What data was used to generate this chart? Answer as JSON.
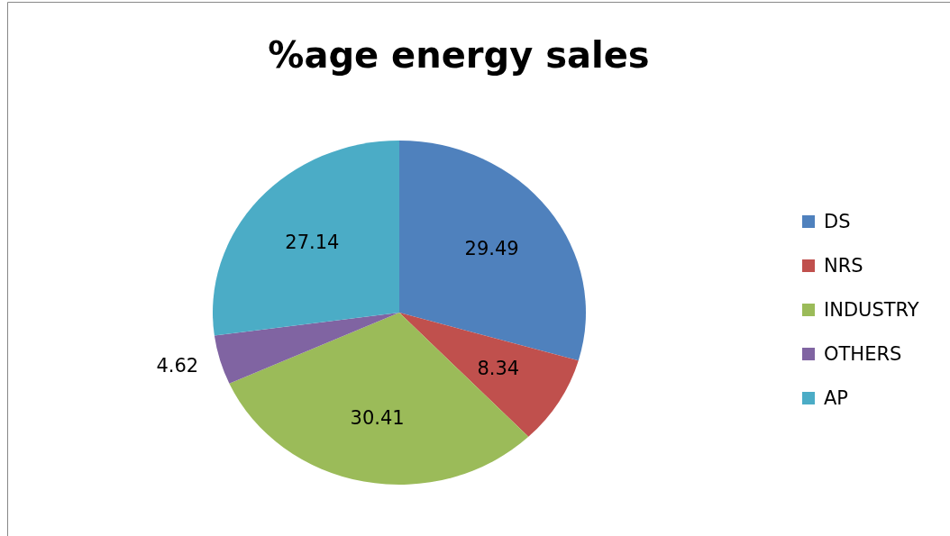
{
  "chart_data": {
    "type": "pie",
    "title": "%age energy sales",
    "categories": [
      "DS",
      "NRS",
      "INDUSTRY",
      "OTHERS",
      "AP"
    ],
    "values": [
      29.49,
      8.34,
      30.41,
      4.62,
      27.14
    ],
    "colors": [
      "#4f81bd",
      "#c0504d",
      "#9bbb59",
      "#8064a2",
      "#4bacc6"
    ],
    "data_labels": true,
    "legend": "right"
  }
}
